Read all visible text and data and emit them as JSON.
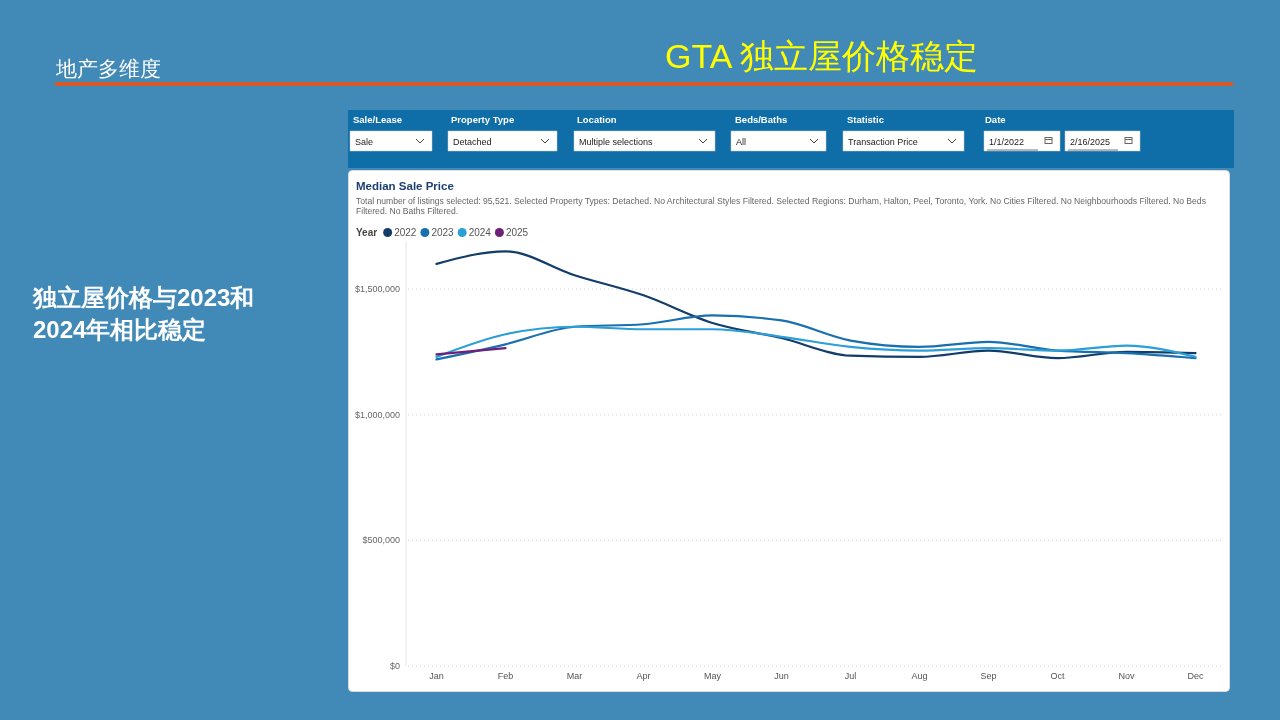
{
  "chart_data": [
    {
      "type": "other",
      "title": "GTA 独立屋价格稳定",
      "subtitle": "地产多维度",
      "annotations": [
        "独立屋价格与2023和2024年相比稳定"
      ]
    },
    {
      "type": "other",
      "annotations": [
        "Sale/Lease",
        "Sale",
        "Property Type",
        "Detached",
        "Location",
        "Multiple selections",
        "Beds/Baths",
        "All",
        "Statistic",
        "Transaction Price",
        "Date",
        "1/1/2022",
        "2/16/2025"
      ]
    },
    {
      "type": "line",
      "title": "Median Sale Price",
      "subtitle": "Total number of listings selected: 95,521. Selected Property Types: Detached. No Architectural Styles Filtered. Selected Regions: Durham, Halton, Peel, Toronto, York. No Cities Filtered. No Neighbourhoods Filtered. No Beds Filtered. No Baths Filtered.",
      "legend_title": "Year",
      "legend": "top left",
      "grid": "y",
      "categories": [
        "Jan",
        "Feb",
        "Mar",
        "Apr",
        "May",
        "Jun",
        "Jul",
        "Aug",
        "Sep",
        "Oct",
        "Nov",
        "Dec"
      ],
      "ylim": [
        0,
        1690000
      ],
      "yticks": [
        {
          "value": 0,
          "label": "$0"
        },
        {
          "value": 500000,
          "label": "$500,000"
        },
        {
          "value": 1000000,
          "label": "$1,000,000"
        },
        {
          "value": 1500000,
          "label": "$1,500,000"
        }
      ],
      "series": [
        {
          "name": "2022",
          "color": "#123d6b",
          "values": [
            1600000,
            1650000,
            1555000,
            1475000,
            1365000,
            1305000,
            1235000,
            1230000,
            1255000,
            1225000,
            1250000,
            1245000
          ]
        },
        {
          "name": "2023",
          "color": "#1a6fae",
          "values": [
            1220000,
            1280000,
            1350000,
            1360000,
            1395000,
            1375000,
            1295000,
            1270000,
            1290000,
            1255000,
            1245000,
            1225000
          ]
        },
        {
          "name": "2024",
          "color": "#2b9fd6",
          "values": [
            1230000,
            1320000,
            1350000,
            1340000,
            1340000,
            1310000,
            1270000,
            1255000,
            1265000,
            1255000,
            1275000,
            1230000
          ]
        },
        {
          "name": "2025",
          "color": "#6e1f78",
          "values": [
            1240000,
            1265000,
            null,
            null,
            null,
            null,
            null,
            null,
            null,
            null,
            null,
            null
          ]
        }
      ]
    }
  ]
}
